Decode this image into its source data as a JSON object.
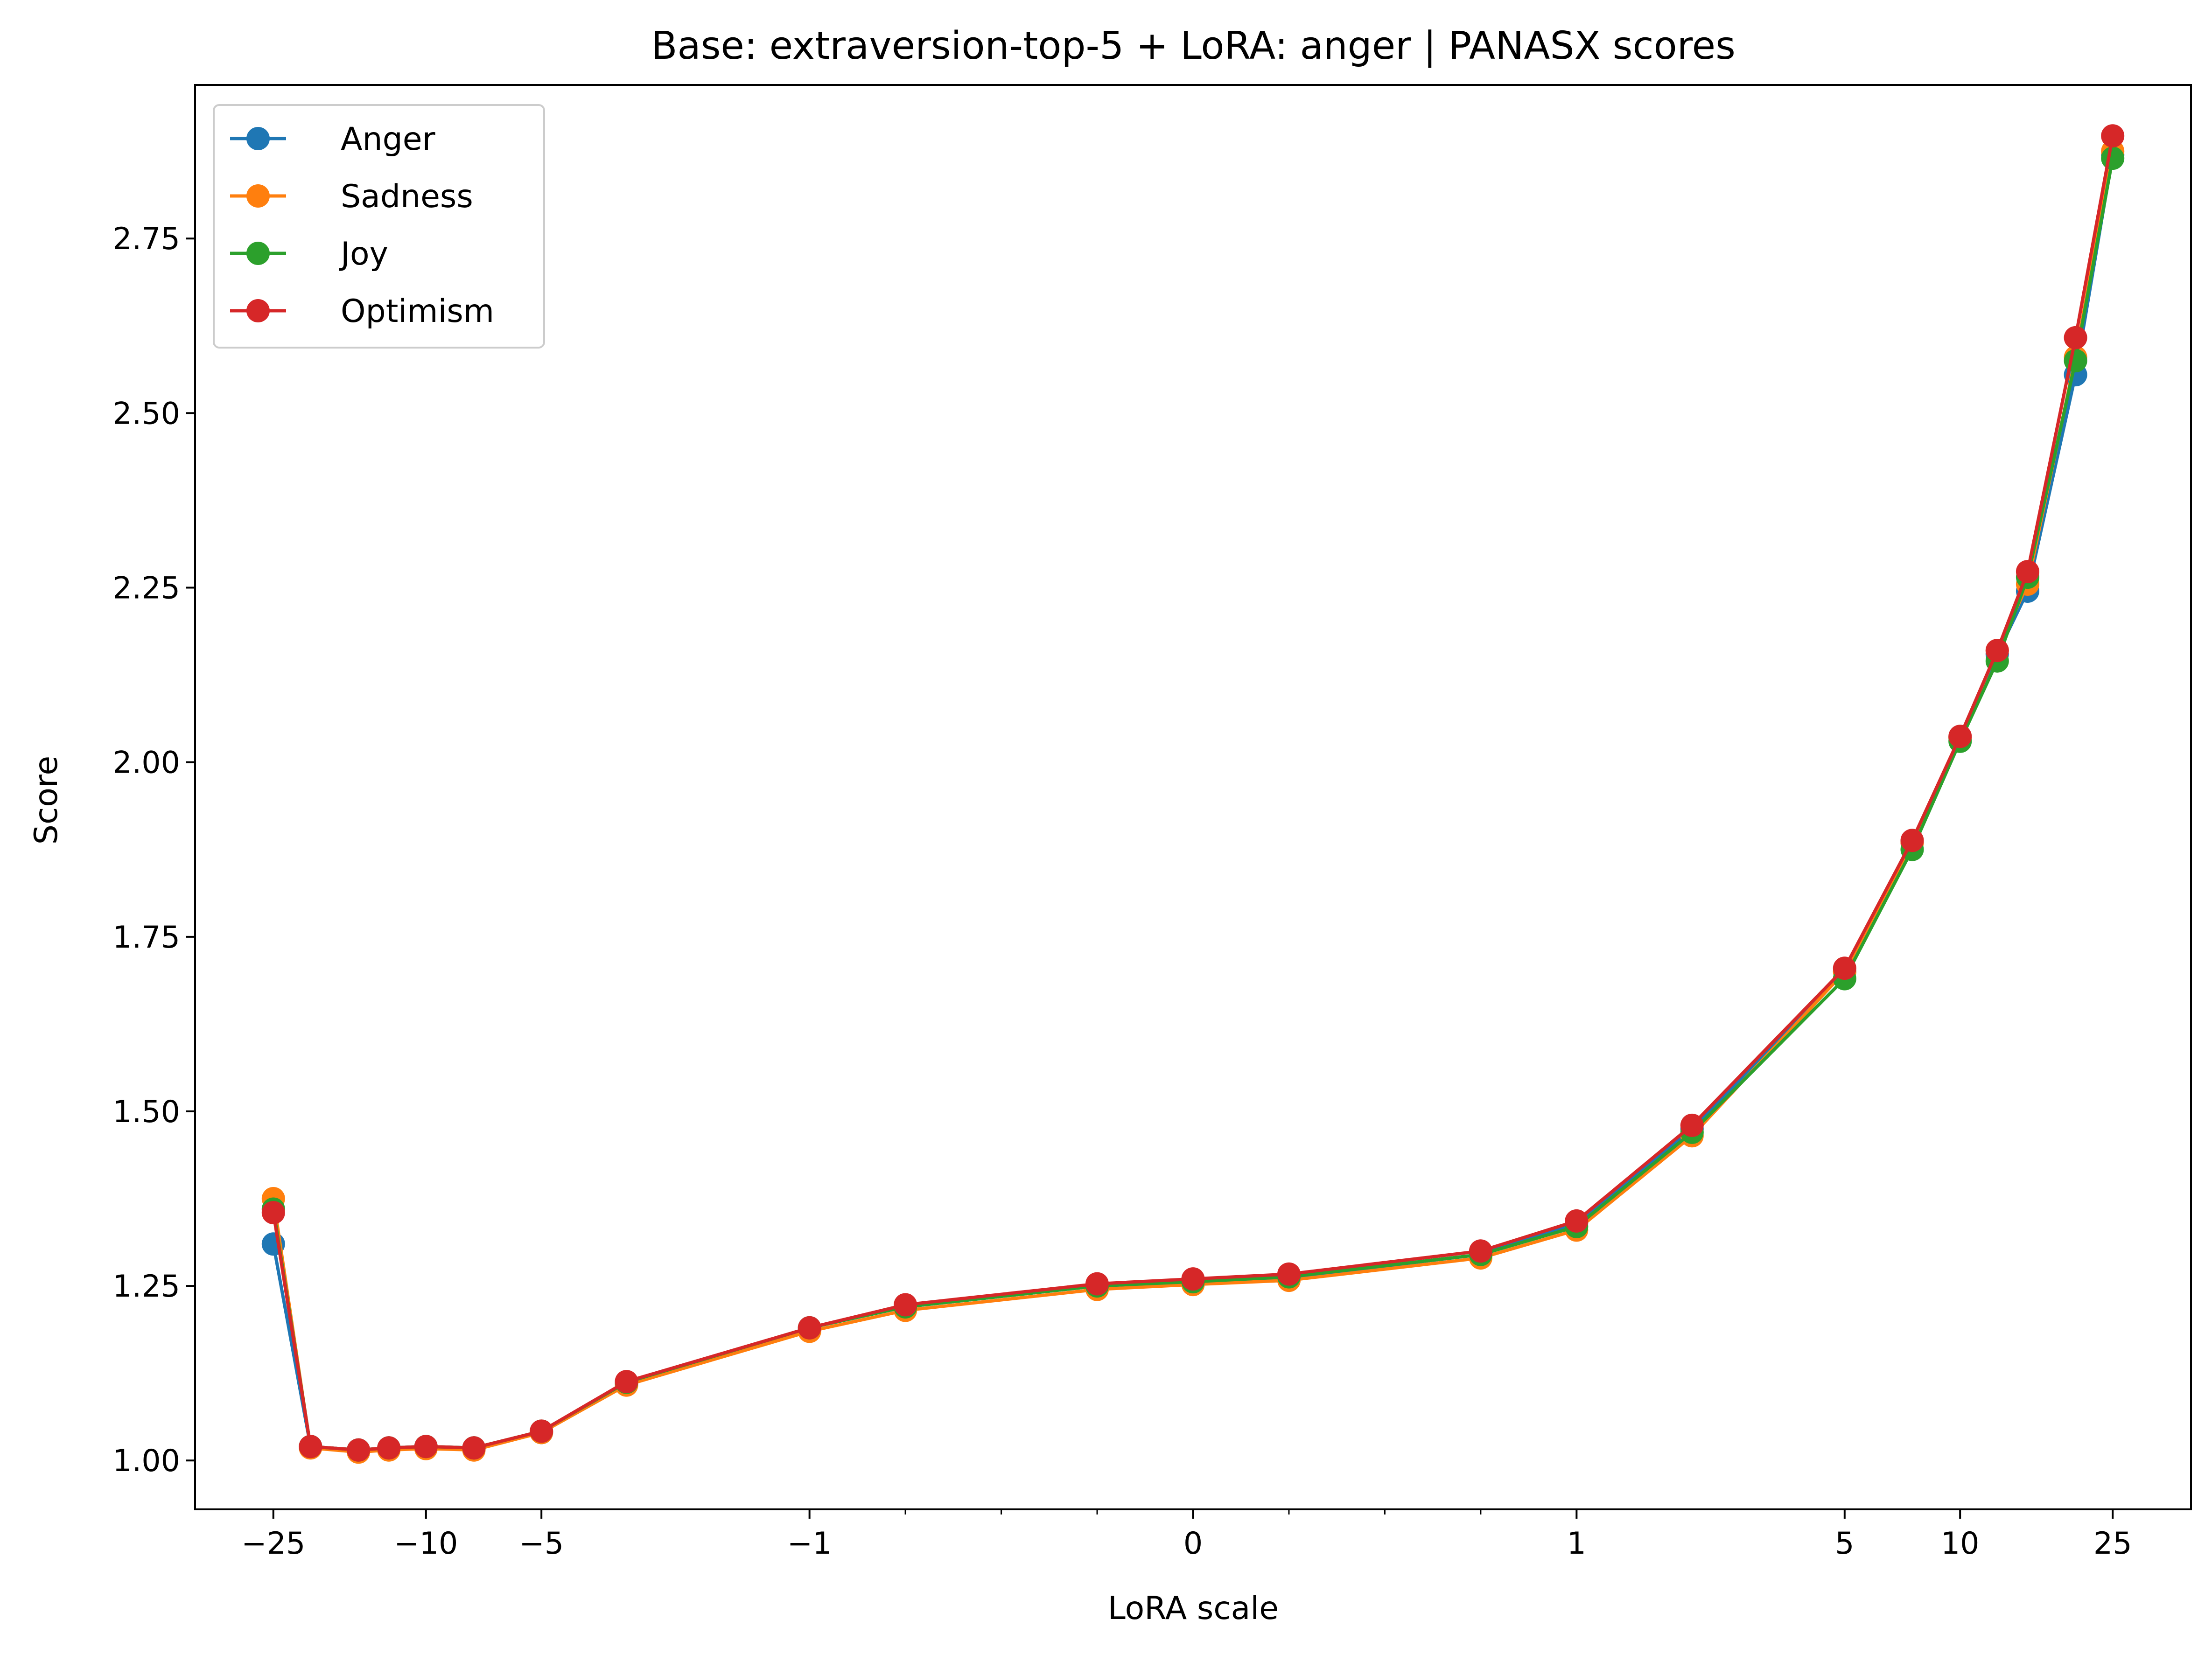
{
  "chart_data": {
    "type": "line",
    "title": "Base: extraversion-top-5 + LoRA: anger | PANASX scores",
    "xlabel": "LoRA scale",
    "ylabel": "Score",
    "xscale": "symlog",
    "xlim": [
      -40,
      40
    ],
    "ylim": [
      0.93,
      2.97
    ],
    "xticks": [
      -25,
      -10,
      -5,
      -1,
      0,
      1,
      5,
      10,
      25
    ],
    "xtick_labels": [
      "−25",
      "−10",
      "−5",
      "−1",
      "0",
      "1",
      "5",
      "10",
      "25"
    ],
    "yticks": [
      1.0,
      1.25,
      1.5,
      1.75,
      2.0,
      2.25,
      2.5,
      2.75
    ],
    "ytick_labels": [
      "1.00",
      "1.25",
      "1.50",
      "1.75",
      "2.00",
      "2.25",
      "2.50",
      "2.75"
    ],
    "grid": false,
    "legend_position": "top-left",
    "x": [
      -25,
      -20,
      -15,
      -12.5,
      -10,
      -7.5,
      -5,
      -3,
      -1,
      -0.75,
      -0.25,
      0,
      0.25,
      0.75,
      1,
      2,
      5,
      7.5,
      10,
      12.5,
      15,
      20,
      25
    ],
    "series": [
      {
        "name": "Anger",
        "color": "#1f77b4",
        "values": [
          1.31,
          1.02,
          1.015,
          1.018,
          1.02,
          1.018,
          1.04,
          1.11,
          1.19,
          1.22,
          1.25,
          1.255,
          1.262,
          1.295,
          1.34,
          1.475,
          1.7,
          1.885,
          2.035,
          2.155,
          2.245,
          2.555,
          2.87
        ]
      },
      {
        "name": "Sadness",
        "color": "#ff7f0e",
        "values": [
          1.375,
          1.018,
          1.012,
          1.015,
          1.017,
          1.015,
          1.04,
          1.108,
          1.185,
          1.215,
          1.245,
          1.252,
          1.258,
          1.29,
          1.33,
          1.465,
          1.7,
          1.885,
          2.035,
          2.16,
          2.255,
          2.58,
          2.875
        ]
      },
      {
        "name": "Joy",
        "color": "#2ca02c",
        "values": [
          1.36,
          1.02,
          1.015,
          1.018,
          1.02,
          1.018,
          1.042,
          1.112,
          1.19,
          1.22,
          1.25,
          1.256,
          1.263,
          1.295,
          1.335,
          1.47,
          1.69,
          1.875,
          2.03,
          2.145,
          2.265,
          2.575,
          2.865
        ]
      },
      {
        "name": "Optimism",
        "color": "#d62728",
        "values": [
          1.355,
          1.02,
          1.015,
          1.018,
          1.02,
          1.018,
          1.042,
          1.113,
          1.19,
          1.223,
          1.253,
          1.26,
          1.267,
          1.3,
          1.343,
          1.48,
          1.705,
          1.888,
          2.037,
          2.16,
          2.273,
          2.608,
          2.897
        ]
      }
    ]
  }
}
